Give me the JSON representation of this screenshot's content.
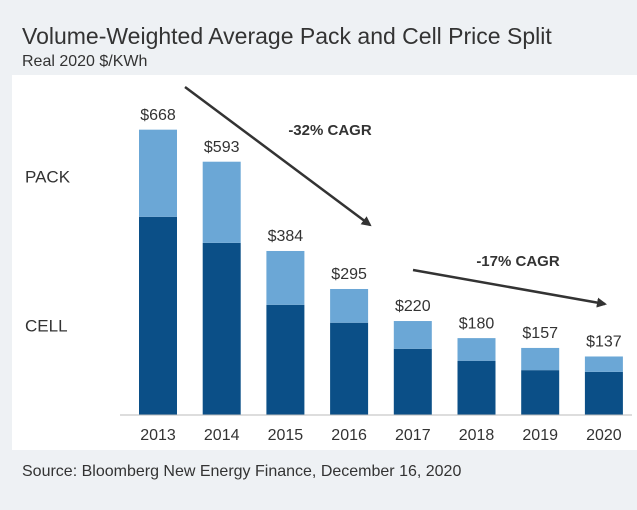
{
  "chart_data": {
    "type": "stacked_bar",
    "title": "Volume-Weighted Average Pack and Cell Price Split",
    "subtitle": "Real 2020 $/KWh",
    "categories": [
      "2013",
      "2014",
      "2015",
      "2016",
      "2017",
      "2018",
      "2019",
      "2020"
    ],
    "series": [
      {
        "name": "CELL",
        "color": "#0b4f87",
        "values": [
          464,
          403,
          258,
          216,
          155,
          127,
          105,
          101
        ]
      },
      {
        "name": "PACK",
        "color": "#6ba7d6",
        "values": [
          204,
          190,
          126,
          79,
          65,
          53,
          52,
          36
        ]
      }
    ],
    "totals": [
      668,
      593,
      384,
      295,
      220,
      180,
      157,
      137
    ],
    "total_labels": [
      "$668",
      "$593",
      "$384",
      "$295",
      "$220",
      "$180",
      "$157",
      "$137"
    ],
    "ylim": [
      0,
      700
    ],
    "annotations": [
      "-32% CAGR",
      "-17% CAGR"
    ],
    "source": "Source: Bloomberg New Energy Finance, December 16, 2020"
  }
}
